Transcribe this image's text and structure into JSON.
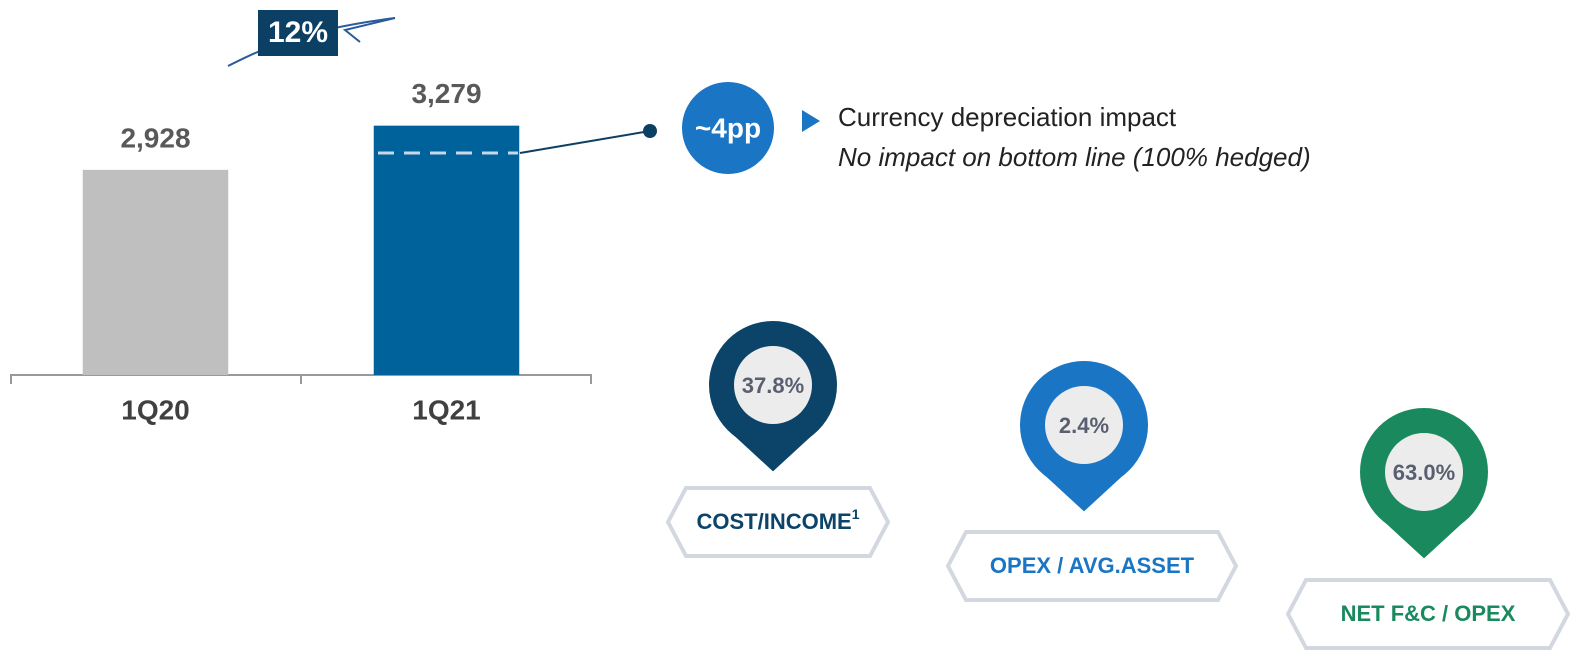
{
  "chart_data": {
    "type": "bar",
    "categories": [
      "1Q20",
      "1Q21"
    ],
    "values": [
      2928,
      3279
    ],
    "value_labels": [
      "2,928",
      "3,279"
    ],
    "colors": [
      "#bfbfbf",
      "#00629b"
    ],
    "ylim": [
      1300,
      3800
    ]
  },
  "growth": "12%",
  "callout": {
    "badge": "~4pp",
    "text": "Currency depreciation impact",
    "note": "No impact on bottom line  (100% hedged)"
  },
  "kpis": [
    {
      "value": "37.8%",
      "label": "COST/INCOME",
      "footnote": "1",
      "color": "#0b4468"
    },
    {
      "value": "2.4%",
      "label": "OPEX / AVG.ASSET",
      "color": "#1a75c4"
    },
    {
      "value": "63.0%",
      "label": "NET F&C / OPEX",
      "color": "#1a8a5e"
    }
  ]
}
